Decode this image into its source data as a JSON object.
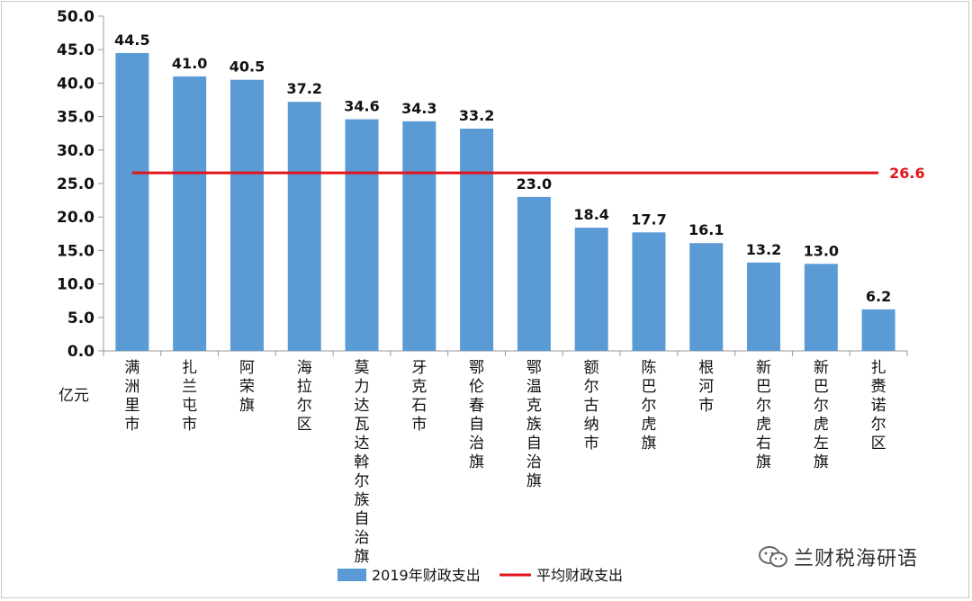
{
  "chart_data": {
    "type": "bar",
    "categories": [
      "满洲里市",
      "扎兰屯市",
      "阿荣旗",
      "海拉尔区",
      "莫力达瓦达斡尔族自治旗",
      "牙克石市",
      "鄂伦春自治旗",
      "鄂温克族自治旗",
      "额尔古纳市",
      "陈巴尔虎旗",
      "根河市",
      "新巴尔虎右旗",
      "新巴尔虎左旗",
      "扎赉诺尔区"
    ],
    "series": [
      {
        "name": "2019年财政支出",
        "values": [
          44.5,
          41.0,
          40.5,
          37.2,
          34.6,
          34.3,
          33.2,
          23.0,
          18.4,
          17.7,
          16.1,
          13.2,
          13.0,
          6.2
        ],
        "color": "#5b9bd5"
      }
    ],
    "reference_line": {
      "name": "平均财政支出",
      "value": 26.6,
      "label": "26.6",
      "color": "#e4141b"
    },
    "ylim": [
      0,
      50
    ],
    "yticks": [
      "0.0",
      "5.0",
      "10.0",
      "15.0",
      "20.0",
      "25.0",
      "30.0",
      "35.0",
      "40.0",
      "45.0",
      "50.0"
    ],
    "ylabel": "亿元",
    "data_labels": [
      "44.5",
      "41.0",
      "40.5",
      "37.2",
      "34.6",
      "34.3",
      "33.2",
      "23.0",
      "18.4",
      "17.7",
      "16.1",
      "13.2",
      "13.0",
      "6.2"
    ],
    "grid": false,
    "legend_position": "bottom"
  },
  "legend": {
    "bar_label": "2019年财政支出",
    "line_label": "平均财政支出"
  },
  "watermark": {
    "text": "兰财税海研语",
    "icon": "wechat-icon"
  }
}
